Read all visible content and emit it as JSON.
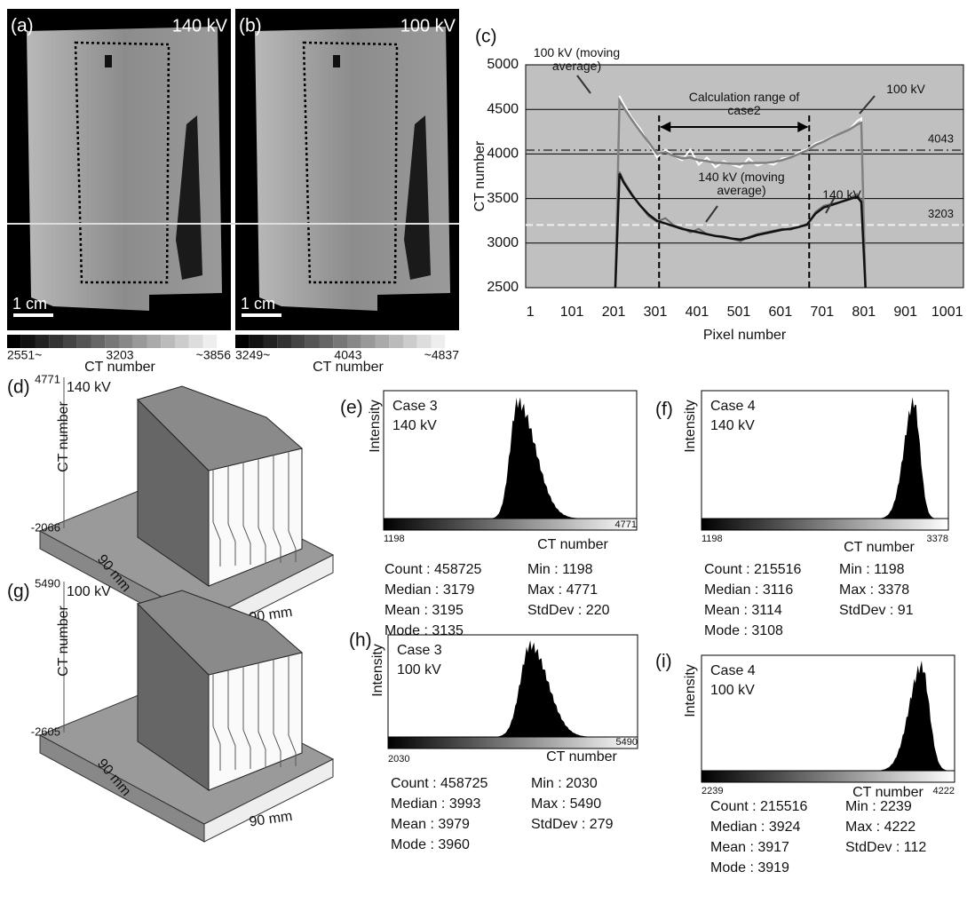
{
  "panels": {
    "a": {
      "label": "(a)",
      "voltage": "140 kV",
      "scale_bar": "1 cm",
      "colorbar": {
        "low": "2551~",
        "mid": "3203",
        "high": "~3856",
        "title": "CT number"
      }
    },
    "b": {
      "label": "(b)",
      "voltage": "100 kV",
      "scale_bar": "1 cm",
      "colorbar": {
        "low": "3249~",
        "mid": "4043",
        "high": "~4837",
        "title": "CT number"
      }
    },
    "d": {
      "label": "(d)",
      "voltage": "140 kV",
      "z_max": "4771",
      "z_min": "-2066",
      "z_title": "CT number",
      "depth": "90 mm",
      "width": "90 mm"
    },
    "g": {
      "label": "(g)",
      "voltage": "100 kV",
      "z_max": "5490",
      "z_min": "-2605",
      "z_title": "CT number",
      "depth": "90 mm",
      "width": "90 mm"
    },
    "e": {
      "label": "(e)",
      "case": "Case 3",
      "voltage": "140 kV",
      "y_title": "Intensity",
      "x_title": "CT number",
      "x_min": "1198",
      "x_max": "4771",
      "stats": [
        [
          "Count : 458725",
          "Min : 1198"
        ],
        [
          "Median : 3179",
          "Max : 4771"
        ],
        [
          "Mean : 3195",
          "StdDev : 220"
        ],
        [
          "Mode : 3135"
        ]
      ]
    },
    "f": {
      "label": "(f)",
      "case": "Case 4",
      "voltage": "140 kV",
      "y_title": "Intensity",
      "x_title": "CT number",
      "x_min": "1198",
      "x_max": "3378",
      "stats": [
        [
          "Count : 215516",
          "Min : 1198"
        ],
        [
          "Median : 3116",
          "Max : 3378"
        ],
        [
          "Mean : 3114",
          "StdDev : 91"
        ],
        [
          "Mode : 3108"
        ]
      ]
    },
    "h": {
      "label": "(h)",
      "case": "Case 3",
      "voltage": "100 kV",
      "y_title": "Intensity",
      "x_title": "CT number",
      "x_min": "2030",
      "x_max": "5490",
      "stats": [
        [
          "Count : 458725",
          "Min : 2030"
        ],
        [
          "Median : 3993",
          "Max : 5490"
        ],
        [
          "Mean : 3979",
          "StdDev : 279"
        ],
        [
          "Mode : 3960"
        ]
      ]
    },
    "i": {
      "label": "(i)",
      "case": "Case 4",
      "voltage": "100 kV",
      "y_title": "Intensity",
      "x_title": "CT number",
      "x_min": "2239",
      "x_max": "4222",
      "stats": [
        [
          "Count : 215516",
          "Min : 2239"
        ],
        [
          "Median : 3924",
          "Max : 4222"
        ],
        [
          "Mean : 3917",
          "StdDev : 112"
        ],
        [
          "Mode : 3919"
        ]
      ]
    }
  },
  "chart_data": {
    "type": "line",
    "label": "(c)",
    "x_label": "Pixel number",
    "y_label": "CT number",
    "x": [
      205,
      215,
      225,
      245,
      265,
      285,
      305,
      325,
      345,
      365,
      385,
      405,
      425,
      445,
      465,
      485,
      505,
      525,
      545,
      565,
      585,
      605,
      625,
      645,
      665,
      685,
      705,
      725,
      745,
      765,
      785,
      795,
      805
    ],
    "series": [
      {
        "name": "100 kV",
        "color": "#ffffff",
        "values": [
          2500,
          4650,
          4560,
          4400,
          4280,
          4120,
          3960,
          4050,
          3980,
          3930,
          4050,
          3880,
          3960,
          3850,
          3920,
          3880,
          3850,
          3950,
          3870,
          3900,
          3880,
          3950,
          3960,
          4020,
          4050,
          4120,
          4150,
          4200,
          4230,
          4270,
          4370,
          4400,
          2500
        ]
      },
      {
        "name": "100 kV (moving average)",
        "color": "#808080",
        "values": [
          2500,
          4600,
          4520,
          4380,
          4250,
          4130,
          4000,
          4020,
          3980,
          3950,
          3960,
          3930,
          3920,
          3900,
          3900,
          3890,
          3890,
          3900,
          3900,
          3900,
          3910,
          3930,
          3960,
          4000,
          4040,
          4100,
          4140,
          4190,
          4230,
          4270,
          4330,
          4350,
          2500
        ]
      },
      {
        "name": "140 kV",
        "color": "#6e6e6e",
        "values": [
          2500,
          3800,
          3700,
          3550,
          3420,
          3300,
          3240,
          3280,
          3200,
          3170,
          3120,
          3160,
          3100,
          3080,
          3060,
          3050,
          3020,
          3070,
          3100,
          3120,
          3140,
          3160,
          3150,
          3180,
          3200,
          3350,
          3420,
          3440,
          3460,
          3500,
          3550,
          3480,
          2500
        ]
      },
      {
        "name": "140 kV (moving average)",
        "color": "#111111",
        "values": [
          2500,
          3780,
          3680,
          3540,
          3420,
          3320,
          3250,
          3220,
          3190,
          3160,
          3140,
          3120,
          3100,
          3080,
          3070,
          3050,
          3040,
          3060,
          3090,
          3110,
          3130,
          3150,
          3160,
          3180,
          3210,
          3330,
          3400,
          3430,
          3460,
          3490,
          3520,
          3460,
          2500
        ]
      }
    ],
    "reference_lines": [
      4043,
      3203
    ],
    "range_lines": [
      310,
      670
    ],
    "annotation": "Calculation range of case2",
    "xlim": [
      -10,
      1040
    ],
    "ylim": [
      2500,
      5000
    ],
    "xticks": [
      1,
      101,
      201,
      301,
      401,
      501,
      601,
      701,
      801,
      901,
      1001
    ],
    "yticks": [
      2500,
      3000,
      3500,
      4000,
      4500,
      5000
    ],
    "grid": true,
    "background": "#c0c0c0"
  }
}
